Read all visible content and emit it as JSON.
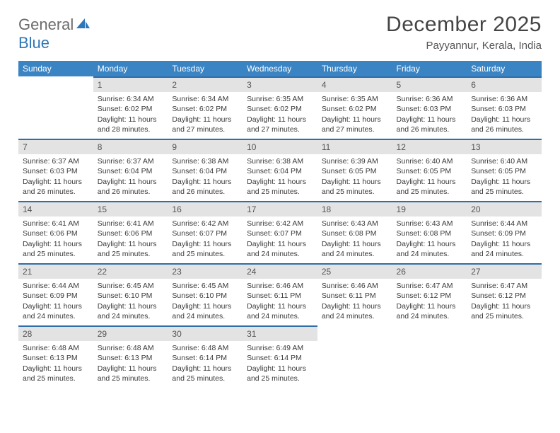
{
  "logo": {
    "part1": "General",
    "part2": "Blue"
  },
  "title": "December 2025",
  "location": "Payyannur, Kerala, India",
  "columns": [
    "Sunday",
    "Monday",
    "Tuesday",
    "Wednesday",
    "Thursday",
    "Friday",
    "Saturday"
  ],
  "colors": {
    "header_bg": "#3a84c4",
    "header_text": "#ffffff",
    "daynum_bg": "#e3e3e3",
    "daynum_border": "#2f6ea8",
    "body_text": "#3a3a3a",
    "logo_gray": "#6b6b6b",
    "logo_blue": "#2f78b7"
  },
  "weeks": [
    [
      null,
      {
        "n": "1",
        "sr": "Sunrise: 6:34 AM",
        "ss": "Sunset: 6:02 PM",
        "dl": "Daylight: 11 hours and 28 minutes."
      },
      {
        "n": "2",
        "sr": "Sunrise: 6:34 AM",
        "ss": "Sunset: 6:02 PM",
        "dl": "Daylight: 11 hours and 27 minutes."
      },
      {
        "n": "3",
        "sr": "Sunrise: 6:35 AM",
        "ss": "Sunset: 6:02 PM",
        "dl": "Daylight: 11 hours and 27 minutes."
      },
      {
        "n": "4",
        "sr": "Sunrise: 6:35 AM",
        "ss": "Sunset: 6:02 PM",
        "dl": "Daylight: 11 hours and 27 minutes."
      },
      {
        "n": "5",
        "sr": "Sunrise: 6:36 AM",
        "ss": "Sunset: 6:03 PM",
        "dl": "Daylight: 11 hours and 26 minutes."
      },
      {
        "n": "6",
        "sr": "Sunrise: 6:36 AM",
        "ss": "Sunset: 6:03 PM",
        "dl": "Daylight: 11 hours and 26 minutes."
      }
    ],
    [
      {
        "n": "7",
        "sr": "Sunrise: 6:37 AM",
        "ss": "Sunset: 6:03 PM",
        "dl": "Daylight: 11 hours and 26 minutes."
      },
      {
        "n": "8",
        "sr": "Sunrise: 6:37 AM",
        "ss": "Sunset: 6:04 PM",
        "dl": "Daylight: 11 hours and 26 minutes."
      },
      {
        "n": "9",
        "sr": "Sunrise: 6:38 AM",
        "ss": "Sunset: 6:04 PM",
        "dl": "Daylight: 11 hours and 26 minutes."
      },
      {
        "n": "10",
        "sr": "Sunrise: 6:38 AM",
        "ss": "Sunset: 6:04 PM",
        "dl": "Daylight: 11 hours and 25 minutes."
      },
      {
        "n": "11",
        "sr": "Sunrise: 6:39 AM",
        "ss": "Sunset: 6:05 PM",
        "dl": "Daylight: 11 hours and 25 minutes."
      },
      {
        "n": "12",
        "sr": "Sunrise: 6:40 AM",
        "ss": "Sunset: 6:05 PM",
        "dl": "Daylight: 11 hours and 25 minutes."
      },
      {
        "n": "13",
        "sr": "Sunrise: 6:40 AM",
        "ss": "Sunset: 6:05 PM",
        "dl": "Daylight: 11 hours and 25 minutes."
      }
    ],
    [
      {
        "n": "14",
        "sr": "Sunrise: 6:41 AM",
        "ss": "Sunset: 6:06 PM",
        "dl": "Daylight: 11 hours and 25 minutes."
      },
      {
        "n": "15",
        "sr": "Sunrise: 6:41 AM",
        "ss": "Sunset: 6:06 PM",
        "dl": "Daylight: 11 hours and 25 minutes."
      },
      {
        "n": "16",
        "sr": "Sunrise: 6:42 AM",
        "ss": "Sunset: 6:07 PM",
        "dl": "Daylight: 11 hours and 25 minutes."
      },
      {
        "n": "17",
        "sr": "Sunrise: 6:42 AM",
        "ss": "Sunset: 6:07 PM",
        "dl": "Daylight: 11 hours and 24 minutes."
      },
      {
        "n": "18",
        "sr": "Sunrise: 6:43 AM",
        "ss": "Sunset: 6:08 PM",
        "dl": "Daylight: 11 hours and 24 minutes."
      },
      {
        "n": "19",
        "sr": "Sunrise: 6:43 AM",
        "ss": "Sunset: 6:08 PM",
        "dl": "Daylight: 11 hours and 24 minutes."
      },
      {
        "n": "20",
        "sr": "Sunrise: 6:44 AM",
        "ss": "Sunset: 6:09 PM",
        "dl": "Daylight: 11 hours and 24 minutes."
      }
    ],
    [
      {
        "n": "21",
        "sr": "Sunrise: 6:44 AM",
        "ss": "Sunset: 6:09 PM",
        "dl": "Daylight: 11 hours and 24 minutes."
      },
      {
        "n": "22",
        "sr": "Sunrise: 6:45 AM",
        "ss": "Sunset: 6:10 PM",
        "dl": "Daylight: 11 hours and 24 minutes."
      },
      {
        "n": "23",
        "sr": "Sunrise: 6:45 AM",
        "ss": "Sunset: 6:10 PM",
        "dl": "Daylight: 11 hours and 24 minutes."
      },
      {
        "n": "24",
        "sr": "Sunrise: 6:46 AM",
        "ss": "Sunset: 6:11 PM",
        "dl": "Daylight: 11 hours and 24 minutes."
      },
      {
        "n": "25",
        "sr": "Sunrise: 6:46 AM",
        "ss": "Sunset: 6:11 PM",
        "dl": "Daylight: 11 hours and 24 minutes."
      },
      {
        "n": "26",
        "sr": "Sunrise: 6:47 AM",
        "ss": "Sunset: 6:12 PM",
        "dl": "Daylight: 11 hours and 24 minutes."
      },
      {
        "n": "27",
        "sr": "Sunrise: 6:47 AM",
        "ss": "Sunset: 6:12 PM",
        "dl": "Daylight: 11 hours and 25 minutes."
      }
    ],
    [
      {
        "n": "28",
        "sr": "Sunrise: 6:48 AM",
        "ss": "Sunset: 6:13 PM",
        "dl": "Daylight: 11 hours and 25 minutes."
      },
      {
        "n": "29",
        "sr": "Sunrise: 6:48 AM",
        "ss": "Sunset: 6:13 PM",
        "dl": "Daylight: 11 hours and 25 minutes."
      },
      {
        "n": "30",
        "sr": "Sunrise: 6:48 AM",
        "ss": "Sunset: 6:14 PM",
        "dl": "Daylight: 11 hours and 25 minutes."
      },
      {
        "n": "31",
        "sr": "Sunrise: 6:49 AM",
        "ss": "Sunset: 6:14 PM",
        "dl": "Daylight: 11 hours and 25 minutes."
      },
      null,
      null,
      null
    ]
  ]
}
